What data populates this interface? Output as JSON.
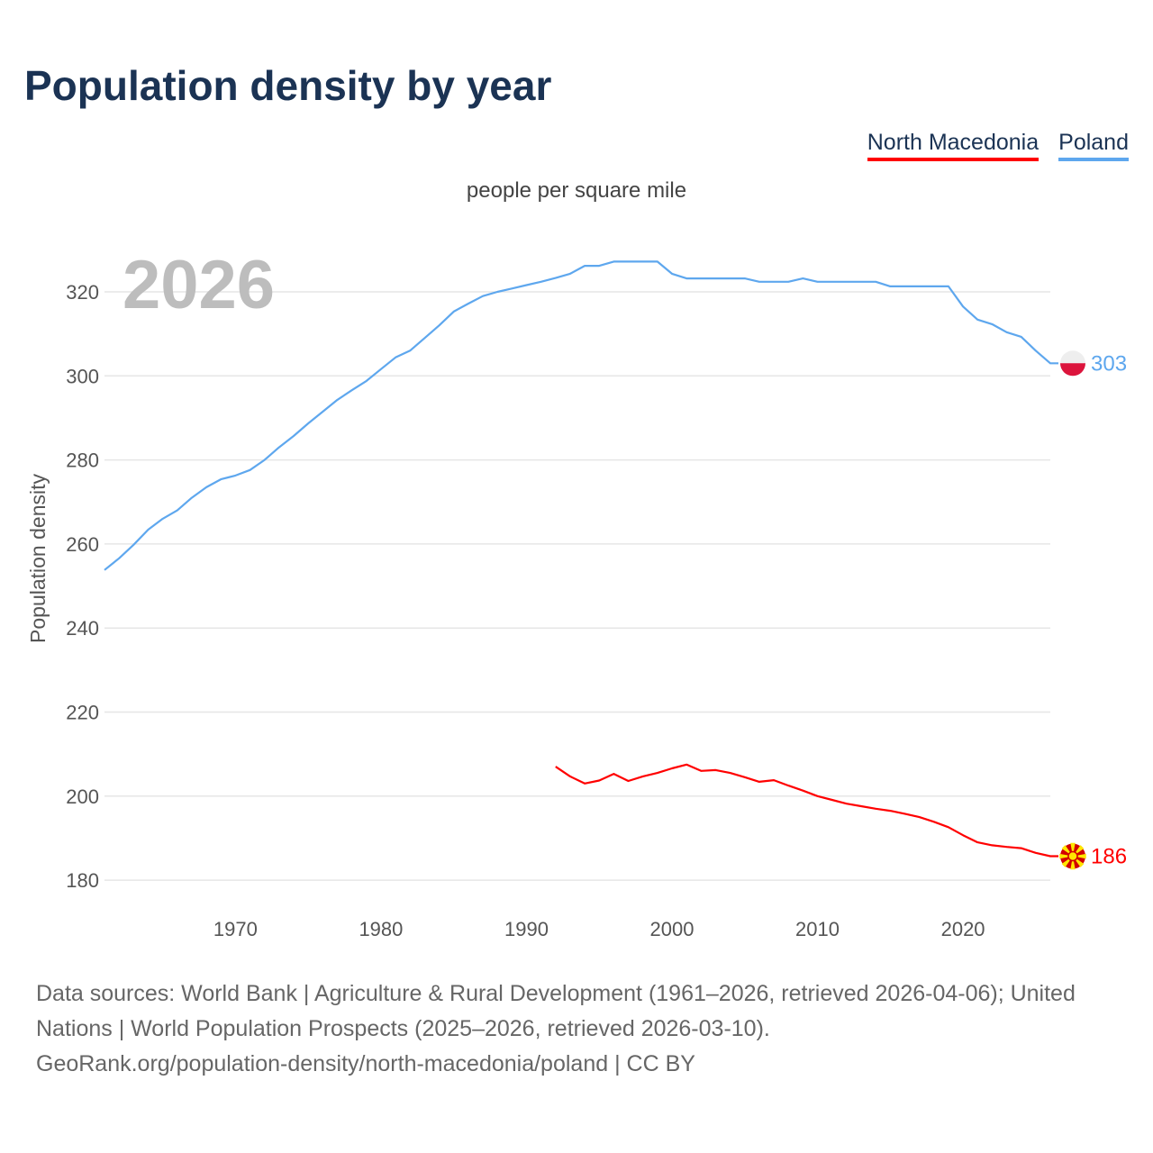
{
  "title": "Population density by year",
  "footer": {
    "sources": "Data sources: World Bank | Agriculture & Rural Development (1961–2026, retrieved 2026-04-06); United Nations | World Population Prospects (2025–2026, retrieved 2026-03-10).",
    "link": "GeoRank.org/population-density/north-macedonia/poland | CC BY"
  },
  "chart_data": {
    "type": "line",
    "title": "Population density by year",
    "subtitle": "people per square mile",
    "ylabel": "Population density",
    "xlabel": "",
    "year_watermark": "2026",
    "xlim": [
      1961,
      2026
    ],
    "ylim": [
      174,
      332
    ],
    "x_ticks": [
      1970,
      1980,
      1990,
      2000,
      2010,
      2020
    ],
    "y_ticks": [
      180,
      200,
      220,
      240,
      260,
      280,
      300,
      320
    ],
    "grid": true,
    "legend_position": "top-right",
    "series": [
      {
        "name": "North Macedonia",
        "color": "#ff0000",
        "end_label": "186",
        "flag": "north-macedonia",
        "x": [
          1992,
          1993,
          1994,
          1995,
          1996,
          1997,
          1998,
          1999,
          2000,
          2001,
          2002,
          2003,
          2004,
          2005,
          2006,
          2007,
          2008,
          2009,
          2010,
          2011,
          2012,
          2013,
          2014,
          2015,
          2016,
          2017,
          2018,
          2019,
          2020,
          2021,
          2022,
          2023,
          2024,
          2025,
          2026
        ],
        "values": [
          207,
          204.7,
          203,
          203.7,
          205.3,
          203.6,
          204.7,
          205.5,
          206.6,
          207.5,
          206,
          206.2,
          205.5,
          204.5,
          203.4,
          203.8,
          202.5,
          201.3,
          200,
          199.1,
          198.2,
          197.6,
          197,
          196.5,
          195.8,
          195,
          193.9,
          192.6,
          190.7,
          189,
          188.3,
          187.9,
          187.6,
          186.5,
          185.7
        ]
      },
      {
        "name": "Poland",
        "color": "#5ea7ee",
        "end_label": "303",
        "flag": "poland",
        "x": [
          1961,
          1962,
          1963,
          1964,
          1965,
          1966,
          1967,
          1968,
          1969,
          1970,
          1971,
          1972,
          1973,
          1974,
          1975,
          1976,
          1977,
          1978,
          1979,
          1980,
          1981,
          1982,
          1983,
          1984,
          1985,
          1986,
          1987,
          1988,
          1989,
          1990,
          1991,
          1992,
          1993,
          1994,
          1995,
          1996,
          1997,
          1998,
          1999,
          2000,
          2001,
          2002,
          2003,
          2004,
          2005,
          2006,
          2007,
          2008,
          2009,
          2010,
          2011,
          2012,
          2013,
          2014,
          2015,
          2016,
          2017,
          2018,
          2019,
          2020,
          2021,
          2022,
          2023,
          2024,
          2025,
          2026
        ],
        "values": [
          253.8,
          256.6,
          259.8,
          263.4,
          266,
          268,
          271,
          273.5,
          275.4,
          276.3,
          277.6,
          280,
          283,
          285.7,
          288.7,
          291.5,
          294.3,
          296.6,
          298.8,
          301.6,
          304.4,
          306,
          309,
          312,
          315.3,
          317.2,
          319,
          320,
          320.8,
          321.6,
          322.4,
          323.3,
          324.3,
          326.2,
          326.2,
          327.2,
          327.2,
          327.2,
          327.2,
          324.3,
          323.2,
          323.2,
          323.2,
          323.2,
          323.2,
          322.4,
          322.4,
          322.4,
          323.2,
          322.4,
          322.4,
          322.4,
          322.4,
          322.4,
          321.3,
          321.3,
          321.3,
          321.3,
          321.3,
          316.5,
          313.4,
          312.3,
          310.4,
          309.3,
          306,
          303
        ]
      }
    ]
  }
}
